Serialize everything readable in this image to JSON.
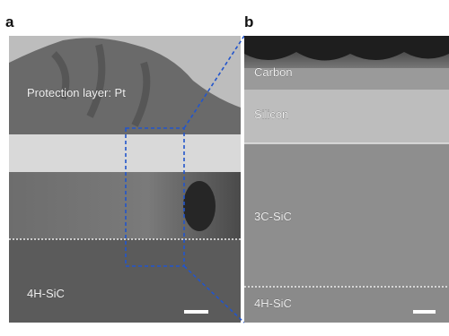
{
  "panels": [
    {
      "label": "a",
      "annotations": [
        "Protection layer: Pt",
        "4H-SiC"
      ]
    },
    {
      "label": "b",
      "annotations": [
        "Carbon",
        "Silicon",
        "3C-SiC",
        "4H-SiC"
      ]
    }
  ]
}
